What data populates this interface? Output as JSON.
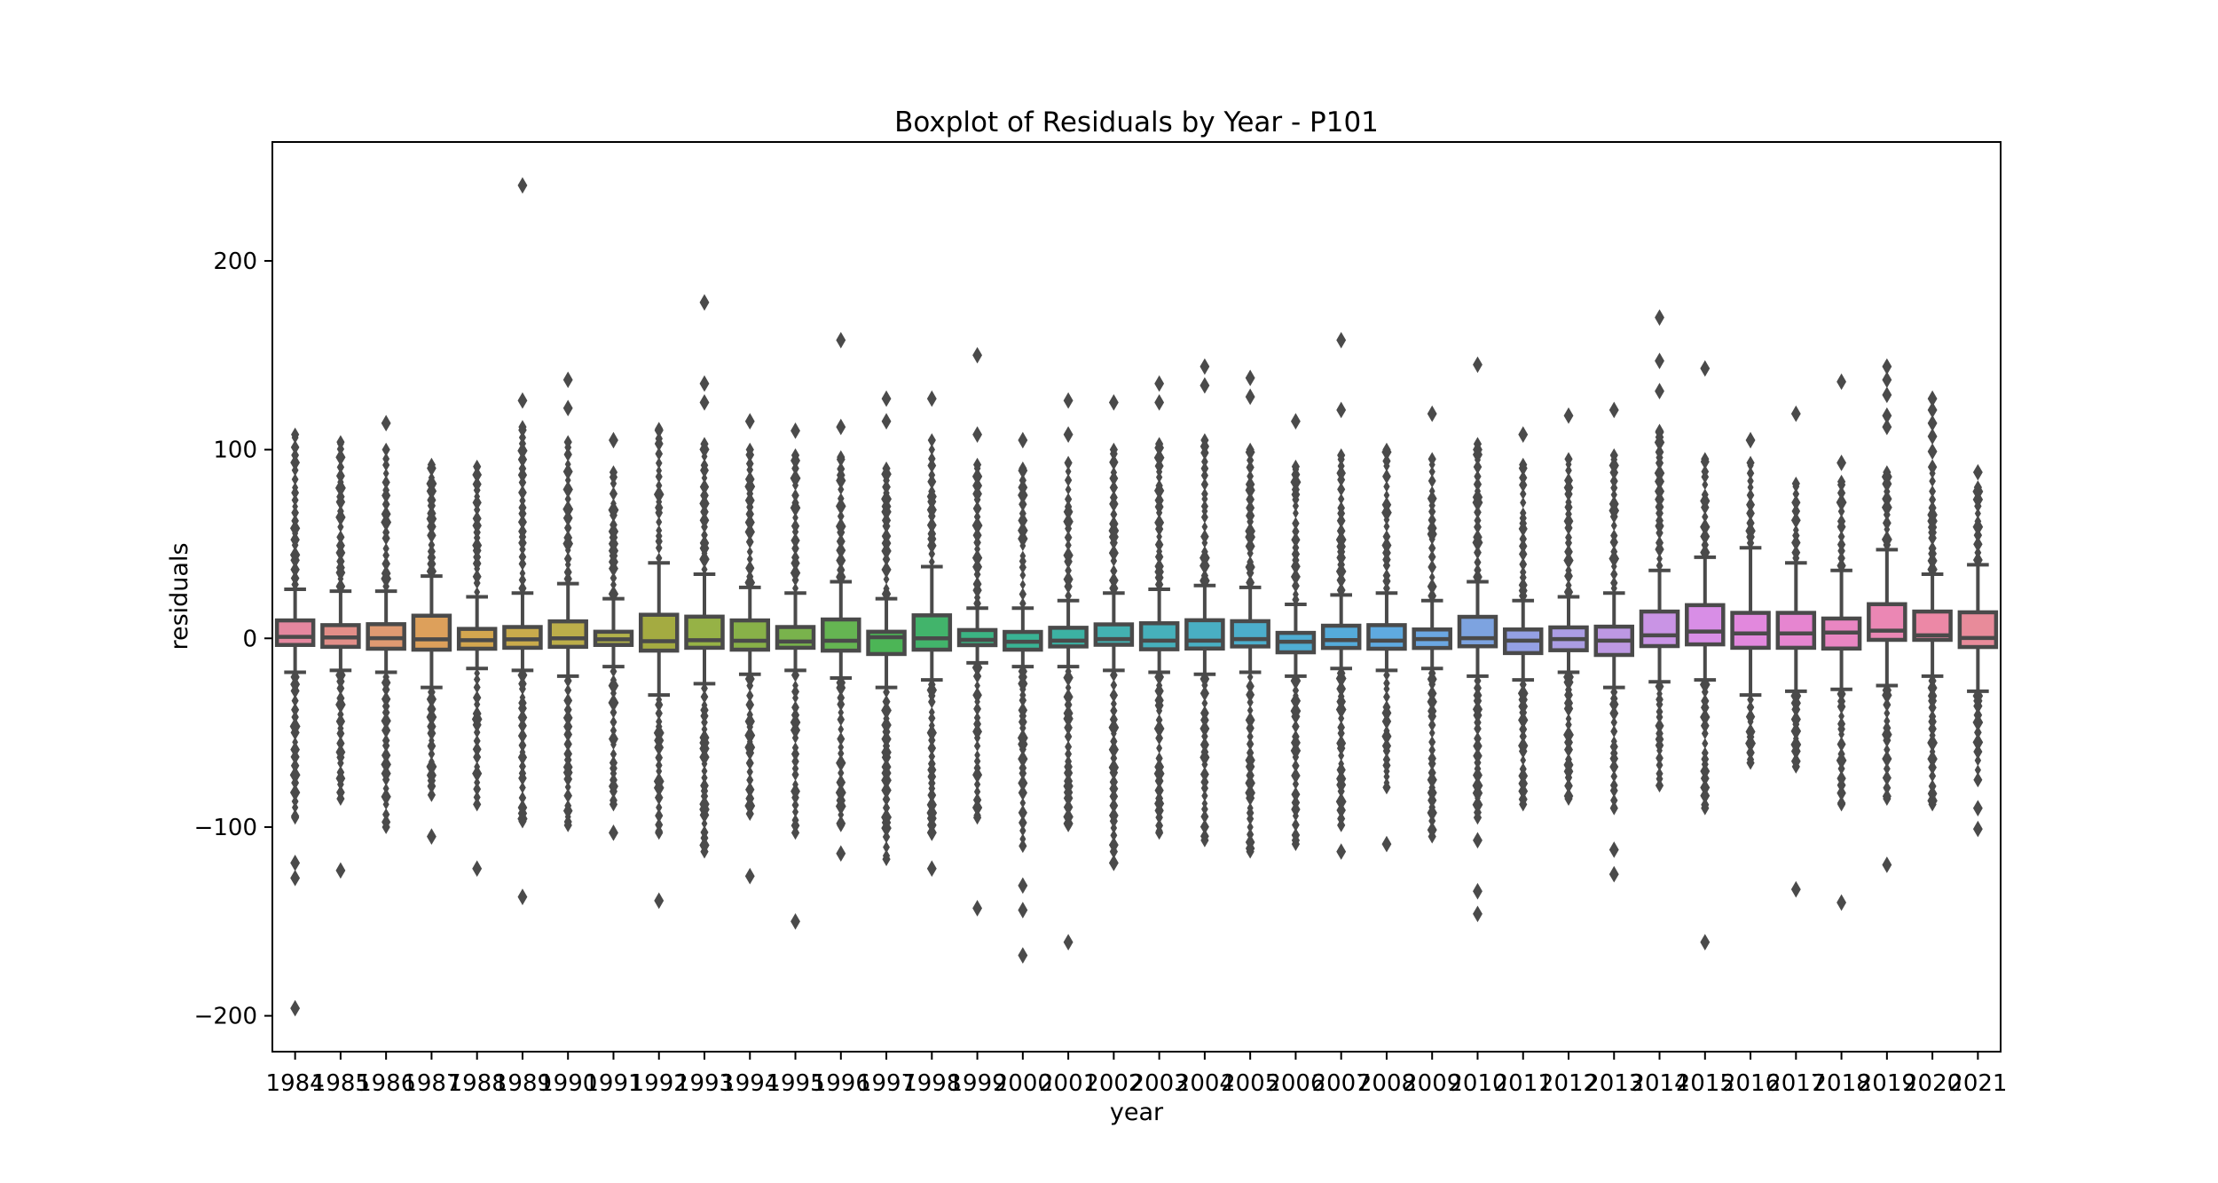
{
  "chart_data": {
    "type": "box",
    "title": "Boxplot of Residuals by Year - P101",
    "xlabel": "year",
    "ylabel": "residuals",
    "ylim": [
      -219,
      263
    ],
    "yticks": [
      -200,
      -100,
      0,
      100,
      200
    ],
    "grid": false,
    "legend": "none",
    "flier_marker": "thin-diamond",
    "box_edge_color": "#4a4a4a",
    "flier_color": "#4a4a4a",
    "series": [
      {
        "year": "1984",
        "color": "#e5879f",
        "q3": 9.5,
        "median": 0.8,
        "q1": -3.5,
        "whisker_high": 26,
        "whisker_low": -18,
        "outlier_dense_high": 108,
        "outlier_extreme_high": [],
        "outlier_dense_low": -95,
        "outlier_extreme_low": [
          -119,
          -127,
          -196
        ]
      },
      {
        "year": "1985",
        "color": "#e28e88",
        "q3": 7.0,
        "median": 0.5,
        "q1": -4.5,
        "whisker_high": 25,
        "whisker_low": -17,
        "outlier_dense_high": 104,
        "outlier_extreme_high": [],
        "outlier_dense_low": -85,
        "outlier_extreme_low": [
          -123
        ]
      },
      {
        "year": "1986",
        "color": "#df9a72",
        "q3": 7.5,
        "median": 0.1,
        "q1": -5.5,
        "whisker_high": 25,
        "whisker_low": -18,
        "outlier_dense_high": 100,
        "outlier_extreme_high": [
          114
        ],
        "outlier_dense_low": -100,
        "outlier_extreme_low": []
      },
      {
        "year": "1987",
        "color": "#dda05b",
        "q3": 12.0,
        "median": -0.5,
        "q1": -6.0,
        "whisker_high": 33,
        "whisker_low": -26,
        "outlier_dense_high": 92,
        "outlier_extreme_high": [],
        "outlier_dense_low": -83,
        "outlier_extreme_low": [
          -105
        ]
      },
      {
        "year": "1988",
        "color": "#d3a64f",
        "q3": 5.0,
        "median": -1.0,
        "q1": -5.5,
        "whisker_high": 22,
        "whisker_low": -16,
        "outlier_dense_high": 91,
        "outlier_extreme_high": [],
        "outlier_dense_low": -88,
        "outlier_extreme_low": [
          -122
        ]
      },
      {
        "year": "1989",
        "color": "#c9ab4c",
        "q3": 6.0,
        "median": -0.5,
        "q1": -5.0,
        "whisker_high": 24,
        "whisker_low": -17,
        "outlier_dense_high": 112,
        "outlier_extreme_high": [
          126,
          240
        ],
        "outlier_dense_low": -97,
        "outlier_extreme_low": [
          -137
        ]
      },
      {
        "year": "1990",
        "color": "#bcae4a",
        "q3": 9.0,
        "median": 0.0,
        "q1": -4.5,
        "whisker_high": 29,
        "whisker_low": -20,
        "outlier_dense_high": 104,
        "outlier_extreme_high": [
          122,
          137
        ],
        "outlier_dense_low": -99,
        "outlier_extreme_low": []
      },
      {
        "year": "1991",
        "color": "#b1b14b",
        "q3": 3.5,
        "median": -0.5,
        "q1": -3.5,
        "whisker_high": 21,
        "whisker_low": -15,
        "outlier_dense_high": 88,
        "outlier_extreme_high": [
          105
        ],
        "outlier_dense_low": -88,
        "outlier_extreme_low": [
          -103
        ]
      },
      {
        "year": "1992",
        "color": "#a4ab41",
        "q3": 12.5,
        "median": -1.5,
        "q1": -6.5,
        "whisker_high": 40,
        "whisker_low": -30,
        "outlier_dense_high": 111,
        "outlier_extreme_high": [],
        "outlier_dense_low": -103,
        "outlier_extreme_low": [
          -139
        ]
      },
      {
        "year": "1993",
        "color": "#96b246",
        "q3": 11.5,
        "median": -1.0,
        "q1": -5.0,
        "whisker_high": 34,
        "whisker_low": -24,
        "outlier_dense_high": 103,
        "outlier_extreme_high": [
          125,
          135,
          178
        ],
        "outlier_dense_low": -113,
        "outlier_extreme_low": []
      },
      {
        "year": "1994",
        "color": "#88b148",
        "q3": 9.5,
        "median": -1.3,
        "q1": -6.0,
        "whisker_high": 27,
        "whisker_low": -19,
        "outlier_dense_high": 100,
        "outlier_extreme_high": [
          115
        ],
        "outlier_dense_low": -93,
        "outlier_extreme_low": [
          -126
        ]
      },
      {
        "year": "1995",
        "color": "#79b34c",
        "q3": 6.0,
        "median": -1.7,
        "q1": -5.0,
        "whisker_high": 24,
        "whisker_low": -17,
        "outlier_dense_high": 97,
        "outlier_extreme_high": [
          110
        ],
        "outlier_dense_low": -103,
        "outlier_extreme_low": [
          -150
        ]
      },
      {
        "year": "1996",
        "color": "#65b552",
        "q3": 10.0,
        "median": -1.3,
        "q1": -6.5,
        "whisker_high": 30,
        "whisker_low": -21,
        "outlier_dense_high": 96,
        "outlier_extreme_high": [
          112,
          158
        ],
        "outlier_dense_low": -99,
        "outlier_extreme_low": [
          -114
        ]
      },
      {
        "year": "1997",
        "color": "#4cb556",
        "q3": 3.5,
        "median": 0.6,
        "q1": -8.3,
        "whisker_high": 21,
        "whisker_low": -26,
        "outlier_dense_high": 90,
        "outlier_extreme_high": [
          115,
          127
        ],
        "outlier_dense_low": -117,
        "outlier_extreme_low": []
      },
      {
        "year": "1998",
        "color": "#42b46b",
        "q3": 12.2,
        "median": 0.0,
        "q1": -6.0,
        "whisker_high": 38,
        "whisker_low": -22,
        "outlier_dense_high": 105,
        "outlier_extreme_high": [
          127
        ],
        "outlier_dense_low": -103,
        "outlier_extreme_low": [
          -122
        ]
      },
      {
        "year": "1999",
        "color": "#3bb483",
        "q3": 4.4,
        "median": -0.8,
        "q1": -3.6,
        "whisker_high": 16,
        "whisker_low": -13,
        "outlier_dense_high": 92,
        "outlier_extreme_high": [
          108,
          150
        ],
        "outlier_dense_low": -95,
        "outlier_extreme_low": [
          -143
        ]
      },
      {
        "year": "2000",
        "color": "#39b394",
        "q3": 3.4,
        "median": -1.8,
        "q1": -6.0,
        "whisker_high": 16,
        "whisker_low": -15,
        "outlier_dense_high": 90,
        "outlier_extreme_high": [
          105
        ],
        "outlier_dense_low": -110,
        "outlier_extreme_low": [
          -131,
          -144,
          -168
        ]
      },
      {
        "year": "2001",
        "color": "#3cb2a3",
        "q3": 5.6,
        "median": -1.2,
        "q1": -4.3,
        "whisker_high": 20,
        "whisker_low": -15,
        "outlier_dense_high": 93,
        "outlier_extreme_high": [
          108,
          126
        ],
        "outlier_dense_low": -99,
        "outlier_extreme_low": [
          -161
        ]
      },
      {
        "year": "2002",
        "color": "#43b1b1",
        "q3": 7.4,
        "median": -0.4,
        "q1": -3.4,
        "whisker_high": 24,
        "whisker_low": -17,
        "outlier_dense_high": 100,
        "outlier_extreme_high": [
          125
        ],
        "outlier_dense_low": -113,
        "outlier_extreme_low": [
          -119
        ]
      },
      {
        "year": "2003",
        "color": "#46b0bb",
        "q3": 8.0,
        "median": -1.2,
        "q1": -5.8,
        "whisker_high": 26,
        "whisker_low": -18,
        "outlier_dense_high": 103,
        "outlier_extreme_high": [
          125,
          135
        ],
        "outlier_dense_low": -103,
        "outlier_extreme_low": []
      },
      {
        "year": "2004",
        "color": "#49afc3",
        "q3": 9.6,
        "median": -1.2,
        "q1": -5.4,
        "whisker_high": 28,
        "whisker_low": -19,
        "outlier_dense_high": 105,
        "outlier_extreme_high": [
          134,
          144
        ],
        "outlier_dense_low": -107,
        "outlier_extreme_low": []
      },
      {
        "year": "2005",
        "color": "#4caecb",
        "q3": 9.1,
        "median": -0.4,
        "q1": -4.3,
        "whisker_high": 27,
        "whisker_low": -18,
        "outlier_dense_high": 100,
        "outlier_extreme_high": [
          128,
          138
        ],
        "outlier_dense_low": -113,
        "outlier_extreme_low": []
      },
      {
        "year": "2006",
        "color": "#4fadd3",
        "q3": 2.9,
        "median": -1.8,
        "q1": -7.4,
        "whisker_high": 18,
        "whisker_low": -20,
        "outlier_dense_high": 91,
        "outlier_extreme_high": [
          115
        ],
        "outlier_dense_low": -109,
        "outlier_extreme_low": []
      },
      {
        "year": "2007",
        "color": "#55abda",
        "q3": 6.7,
        "median": -0.9,
        "q1": -5.1,
        "whisker_high": 23,
        "whisker_low": -16,
        "outlier_dense_high": 97,
        "outlier_extreme_high": [
          121,
          158
        ],
        "outlier_dense_low": -99,
        "outlier_extreme_low": [
          -113
        ]
      },
      {
        "year": "2008",
        "color": "#5faae0",
        "q3": 7.0,
        "median": -1.2,
        "q1": -5.5,
        "whisker_high": 24,
        "whisker_low": -17,
        "outlier_dense_high": 100,
        "outlier_extreme_high": [],
        "outlier_dense_low": -79,
        "outlier_extreme_low": [
          -109
        ]
      },
      {
        "year": "2009",
        "color": "#6ba7e2",
        "q3": 4.7,
        "median": -0.4,
        "q1": -5.1,
        "whisker_high": 20,
        "whisker_low": -16,
        "outlier_dense_high": 95,
        "outlier_extreme_high": [
          119
        ],
        "outlier_dense_low": -105,
        "outlier_extreme_low": []
      },
      {
        "year": "2010",
        "color": "#7da3e0",
        "q3": 11.4,
        "median": 0.1,
        "q1": -4.2,
        "whisker_high": 30,
        "whisker_low": -20,
        "outlier_dense_high": 103,
        "outlier_extreme_high": [
          145
        ],
        "outlier_dense_low": -95,
        "outlier_extreme_low": [
          -107,
          -134,
          -146
        ]
      },
      {
        "year": "2011",
        "color": "#94a0e4",
        "q3": 4.7,
        "median": -1.2,
        "q1": -7.8,
        "whisker_high": 20,
        "whisker_low": -22,
        "outlier_dense_high": 92,
        "outlier_extreme_high": [
          108
        ],
        "outlier_dense_low": -88,
        "outlier_extreme_low": []
      },
      {
        "year": "2012",
        "color": "#ab9de3",
        "q3": 5.8,
        "median": -0.4,
        "q1": -6.3,
        "whisker_high": 22,
        "whisker_low": -18,
        "outlier_dense_high": 95,
        "outlier_extreme_high": [
          118
        ],
        "outlier_dense_low": -85,
        "outlier_extreme_low": []
      },
      {
        "year": "2013",
        "color": "#bd98e3",
        "q3": 6.2,
        "median": -1.2,
        "q1": -8.8,
        "whisker_high": 24,
        "whisker_low": -26,
        "outlier_dense_high": 97,
        "outlier_extreme_high": [
          121
        ],
        "outlier_dense_low": -90,
        "outlier_extreme_low": [
          -112,
          -125
        ]
      },
      {
        "year": "2014",
        "color": "#c994e5",
        "q3": 14.2,
        "median": 1.6,
        "q1": -4.1,
        "whisker_high": 36,
        "whisker_low": -23,
        "outlier_dense_high": 110,
        "outlier_extreme_high": [
          131,
          147,
          170
        ],
        "outlier_dense_low": -78,
        "outlier_extreme_low": []
      },
      {
        "year": "2015",
        "color": "#d88ee6",
        "q3": 17.6,
        "median": 3.6,
        "q1": -3.2,
        "whisker_high": 43,
        "whisker_low": -22,
        "outlier_dense_high": 95,
        "outlier_extreme_high": [
          143
        ],
        "outlier_dense_low": -90,
        "outlier_extreme_low": [
          -161
        ]
      },
      {
        "year": "2016",
        "color": "#e288dd",
        "q3": 13.5,
        "median": 2.6,
        "q1": -5.0,
        "whisker_high": 48,
        "whisker_low": -30,
        "outlier_dense_high": 93,
        "outlier_extreme_high": [
          105
        ],
        "outlier_dense_low": -66,
        "outlier_extreme_low": []
      },
      {
        "year": "2017",
        "color": "#e685d0",
        "q3": 13.5,
        "median": 2.6,
        "q1": -5.0,
        "whisker_high": 40,
        "whisker_low": -28,
        "outlier_dense_high": 82,
        "outlier_extreme_high": [
          119
        ],
        "outlier_dense_low": -68,
        "outlier_extreme_low": [
          -133
        ]
      },
      {
        "year": "2018",
        "color": "#e986c2",
        "q3": 10.5,
        "median": 3.1,
        "q1": -5.4,
        "whisker_high": 36,
        "whisker_low": -27,
        "outlier_dense_high": 83,
        "outlier_extreme_high": [
          93,
          136
        ],
        "outlier_dense_low": -88,
        "outlier_extreme_low": [
          -140
        ]
      },
      {
        "year": "2019",
        "color": "#eb87b4",
        "q3": 18.1,
        "median": 4.1,
        "q1": -0.8,
        "whisker_high": 47,
        "whisker_low": -25,
        "outlier_dense_high": 88,
        "outlier_extreme_high": [
          112,
          118,
          129,
          137,
          144
        ],
        "outlier_dense_low": -85,
        "outlier_extreme_low": [
          -120
        ]
      },
      {
        "year": "2020",
        "color": "#ec88a6",
        "q3": 14.2,
        "median": 1.6,
        "q1": -0.8,
        "whisker_high": 34,
        "whisker_low": -20,
        "outlier_dense_high": 91,
        "outlier_extreme_high": [
          99,
          107,
          114,
          121,
          127
        ],
        "outlier_dense_low": -88,
        "outlier_extreme_low": []
      },
      {
        "year": "2021",
        "color": "#e88b9a",
        "q3": 13.8,
        "median": 0.2,
        "q1": -4.6,
        "whisker_high": 39,
        "whisker_low": -28,
        "outlier_dense_high": 80,
        "outlier_extreme_high": [
          88
        ],
        "outlier_dense_low": -75,
        "outlier_extreme_low": [
          -90,
          -101
        ]
      }
    ]
  }
}
